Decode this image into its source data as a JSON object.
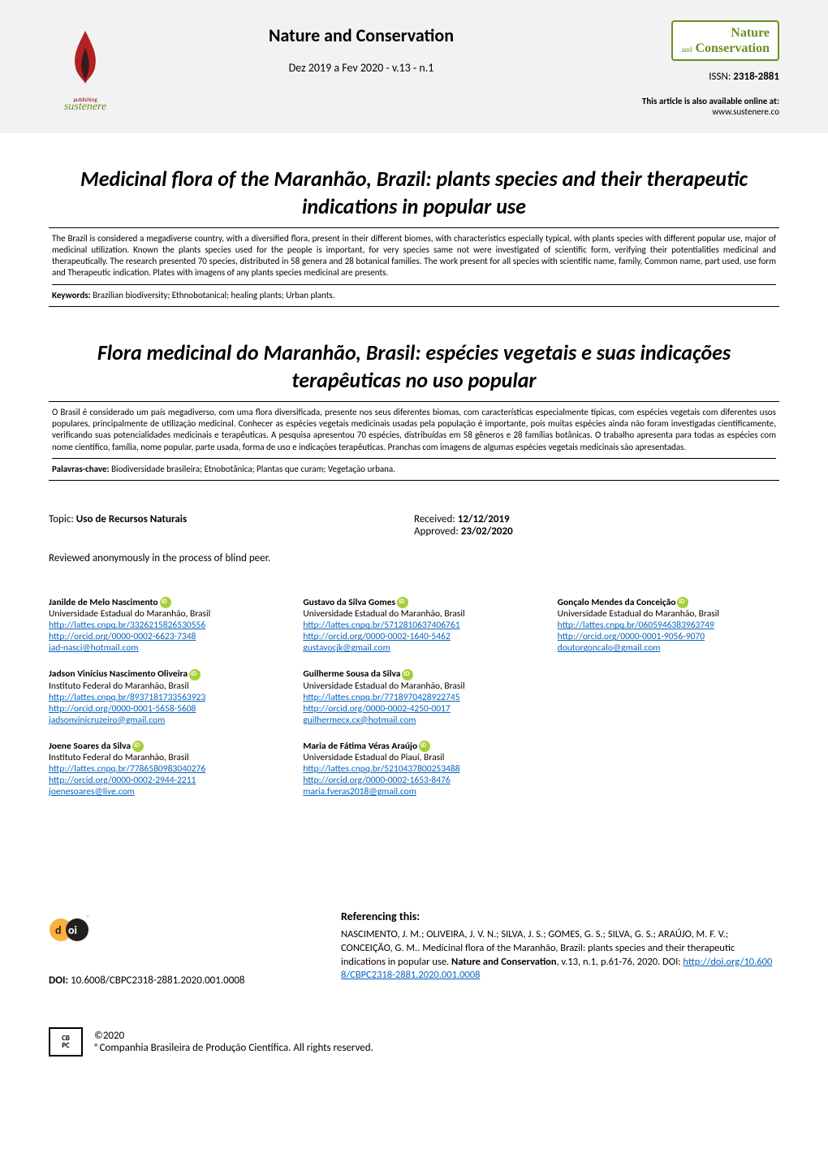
{
  "header": {
    "journal_title": "Nature and Conservation",
    "issue": "Dez 2019 a Fev 2020 - v.13 - n.1",
    "issn_label": "ISSN:",
    "issn_value": "2318-2881",
    "available_text": "This article is also available online at:",
    "website": "www.sustenere.co",
    "publisher_small": "publishing",
    "publisher_name": "sustenere",
    "nature_logo_top": "Nature",
    "nature_logo_and": "and",
    "nature_logo_bottom": "Conservation"
  },
  "title_en": "Medicinal flora of the Maranhão, Brazil: plants species and their therapeutic indications in popular use",
  "abstract_en": "The Brazil is considered a megadiverse country, with a diversified flora, present in their different biomes, with characteristics especially typical, with plants species with different popular use, major of medicinal utilization. Known the plants species used for the people is important, for very species same not were investigated of scientific form, verifying their potentialities medicinal and therapeutically. The research presented 70 species, distributed in 58 genera and 28 botanical families. The work present for all species with scientific name, family, Common name, part used, use form and Therapeutic indication. Plates with imagens of any plants species medicinal are presents.",
  "keywords_label_en": "Keywords:",
  "keywords_en": "Brazilian biodiversity; Ethnobotanical; healing plants; Urban plants.",
  "title_pt": "Flora medicinal do Maranhão, Brasil: espécies vegetais e suas indicações terapêuticas no uso popular",
  "abstract_pt": "O Brasil é considerado um país megadiverso, com uma flora diversificada, presente nos seus diferentes biomas, com características especialmente típicas, com espécies vegetais com diferentes usos populares, principalmente de utilização medicinal. Conhecer as espécies vegetais medicinais usadas pela população é importante, pois muitas espécies ainda não foram investigadas cientificamente, verificando suas potencialidades medicinais e terapêuticas. A pesquisa apresentou 70 espécies, distribuídas em 58 gêneros e 28 famílias botânicas. O trabalho apresenta para todas as espécies com nome científico, família, nome popular, parte usada, forma de uso e indicações terapêuticas. Pranchas com imagens de algumas espécies vegetais medicinais são apresentadas.",
  "keywords_label_pt": "Palavras-chave:",
  "keywords_pt": "Biodiversidade brasileira; Etnobotânica; Plantas que curam; Vegetação urbana.",
  "meta": {
    "topic_label": "Topic:",
    "topic_value": "Uso de Recursos Naturais",
    "received_label": "Received:",
    "received_value": "12/12/2019",
    "approved_label": "Approved:",
    "approved_value": "23/02/2020",
    "review_note": "Reviewed anonymously in the process of blind peer."
  },
  "authors": {
    "col1": [
      {
        "name": "Janilde de Melo Nascimento",
        "aff": "Universidade Estadual do Maranhão, Brasil",
        "lattes": "http://lattes.cnpq.br/3326215826530556",
        "orcid": "http://orcid.org/0000-0002-6623-7348",
        "email": "jad-nasci@hotmail.com"
      },
      {
        "name": "Jadson Vinícius Nascimento Oliveira",
        "aff": "Instituto Federal do Maranhão, Brasil",
        "lattes": "http://lattes.cnpq.br/8937181733563923",
        "orcid": "http://orcid.org/0000-0001-5658-5608",
        "email": "jadsonvinicruzeiro@gmail.com"
      },
      {
        "name": "Joene Soares da Silva",
        "aff": "Instituto Federal do Maranhão, Brasil",
        "lattes": "http://lattes.cnpq.br/7786580983040276",
        "orcid": "http://orcid.org/0000-0002-2944-2211",
        "email": "joenesoares@live.com"
      }
    ],
    "col2": [
      {
        "name": "Gustavo da Silva Gomes",
        "aff": "Universidade Estadual do Maranhão, Brasil",
        "lattes": "http://lattes.cnpq.br/5712810637406761",
        "orcid": "http://orcid.org/0000-0002-1640-5462",
        "email": "gustavocjk@gmail.com"
      },
      {
        "name": "Guilherme Sousa da Silva",
        "aff": "Universidade Estadual do Maranhão, Brasil",
        "lattes": "http://lattes.cnpq.br/7718970428922745",
        "orcid": "http://orcid.org/0000-0002-4250-0017",
        "email": "guilhermecx.cx@hotmail.com"
      },
      {
        "name": "Maria de Fátima Véras Araújo",
        "aff": "Universidade Estadual do Piauí, Brasil",
        "lattes": "http://lattes.cnpq.br/5210437800253488",
        "orcid": "http://orcid.org/0000-0002-1653-8476",
        "email": "maria.fveras2018@gmail.com"
      }
    ],
    "col3": [
      {
        "name": "Gonçalo Mendes da Conceição",
        "aff": "Universidade Estadual do Maranhão, Brasil",
        "lattes": "http://lattes.cnpq.br/0605946383963749",
        "orcid": "http://orcid.org/0000-0001-9056-9070",
        "email": "doutorgoncalo@gmail.com"
      }
    ]
  },
  "doi": {
    "label": "DOI:",
    "value": "10.6008/CBPC2318-2881.2020.001.0008",
    "ref_heading": "Referencing this:",
    "ref_text_1": "NASCIMENTO, J. M.; OLIVEIRA, J. V. N.; SILVA, J. S.; GOMES, G. S.; SILVA, G. S.; ARAÚJO, M. F. V.; CONCEIÇÃO, G. M.. Medicinal flora of the Maranhão, Brazil: plants species and their therapeutic indications in popular use. ",
    "ref_journal": "Nature and Conservation",
    "ref_text_2": ", v.13, n.1, p.61-76, 2020. DOI: ",
    "ref_link": "http://doi.org/10.6008/CBPC2318-2881.2020.001.0008"
  },
  "footer": {
    "year": "©2020",
    "company": "®Companhia Brasileira de Produção Científica. All rights reserved.",
    "cbpc_top": "CB",
    "cbpc_bot": "PC"
  },
  "colors": {
    "header_bg": "#f2f2f2",
    "link": "#0563c1",
    "orcid": "#a6ce39",
    "flame_red": "#b22222",
    "flame_dark": "#3a1a1a",
    "green": "#6b8e23"
  }
}
